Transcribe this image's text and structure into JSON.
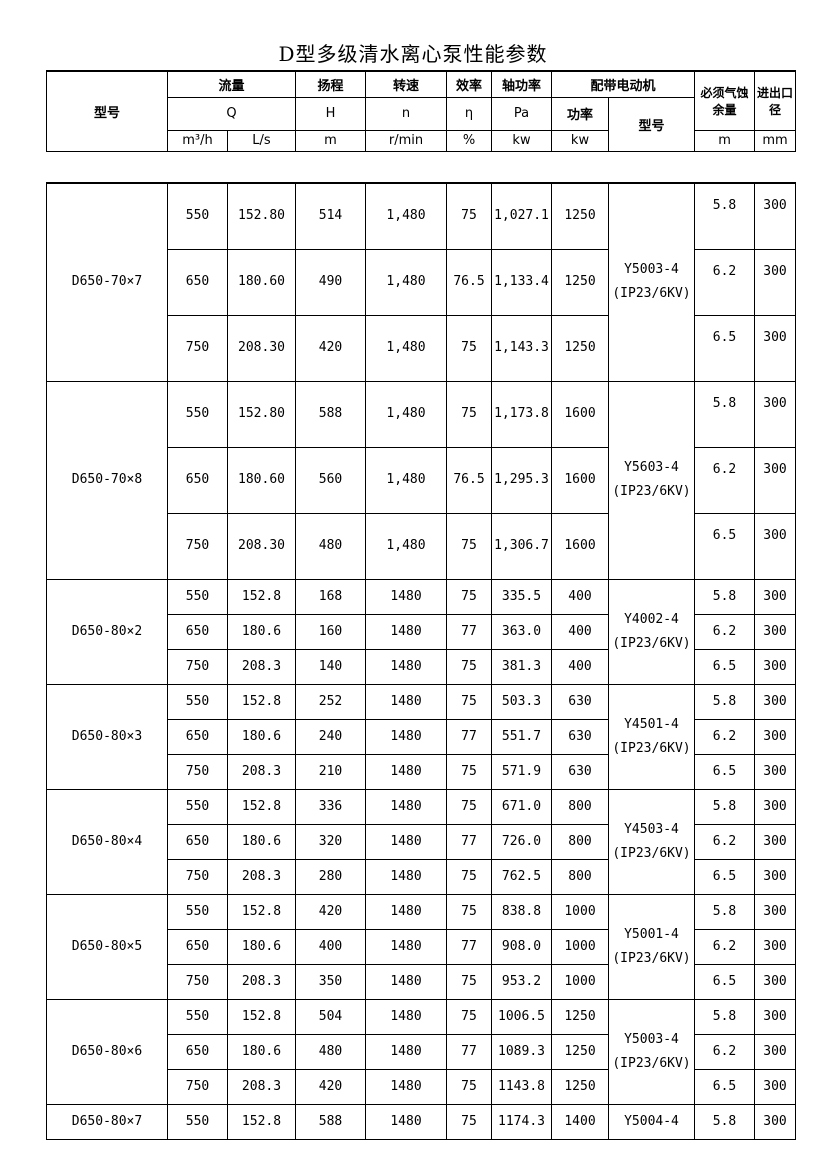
{
  "title": "D型多级清水离心泵性能参数",
  "header": {
    "model": "型号",
    "flow": "流量",
    "head": "扬程",
    "speed": "转速",
    "eff": "效率",
    "shaft_power": "轴功率",
    "motor": "配带电动机",
    "npsh": "必须气蚀余量",
    "port": "进出口径",
    "Q": "Q",
    "H": "H",
    "n": "n",
    "eta": "η",
    "Pa": "Pa",
    "power": "功率",
    "motor_model": "型号",
    "u_m3h": "m³/h",
    "u_ls": "L/s",
    "u_m": "m",
    "u_rpm": "r/min",
    "u_pct": "%",
    "u_kw": "kw",
    "u_kw2": "kw",
    "u_npsh": "m",
    "u_mm": "mm"
  },
  "groups": [
    {
      "model": "D650-70×7",
      "motor": "Y5003-4\n(IP23/6KV)",
      "rows": [
        [
          "550",
          "152.80",
          "514",
          "1,480",
          "75",
          "1,027.1",
          "1250",
          "5.8",
          "300"
        ],
        [
          "650",
          "180.60",
          "490",
          "1,480",
          "76.5",
          "1,133.4",
          "1250",
          "6.2",
          "300"
        ],
        [
          "750",
          "208.30",
          "420",
          "1,480",
          "75",
          "1,143.3",
          "1250",
          "6.5",
          "300"
        ]
      ]
    },
    {
      "model": "D650-70×8",
      "motor": "Y5603-4\n(IP23/6KV)",
      "rows": [
        [
          "550",
          "152.80",
          "588",
          "1,480",
          "75",
          "1,173.8",
          "1600",
          "5.8",
          "300"
        ],
        [
          "650",
          "180.60",
          "560",
          "1,480",
          "76.5",
          "1,295.3",
          "1600",
          "6.2",
          "300"
        ],
        [
          "750",
          "208.30",
          "480",
          "1,480",
          "75",
          "1,306.7",
          "1600",
          "6.5",
          "300"
        ]
      ]
    },
    {
      "model": "D650-80×2",
      "motor": "Y4002-4\n(IP23/6KV)",
      "rows": [
        [
          "550",
          "152.8",
          "168",
          "1480",
          "75",
          "335.5",
          "400",
          "5.8",
          "300"
        ],
        [
          "650",
          "180.6",
          "160",
          "1480",
          "77",
          "363.0",
          "400",
          "6.2",
          "300"
        ],
        [
          "750",
          "208.3",
          "140",
          "1480",
          "75",
          "381.3",
          "400",
          "6.5",
          "300"
        ]
      ]
    },
    {
      "model": "D650-80×3",
      "motor": "Y4501-4\n(IP23/6KV)",
      "rows": [
        [
          "550",
          "152.8",
          "252",
          "1480",
          "75",
          "503.3",
          "630",
          "5.8",
          "300"
        ],
        [
          "650",
          "180.6",
          "240",
          "1480",
          "77",
          "551.7",
          "630",
          "6.2",
          "300"
        ],
        [
          "750",
          "208.3",
          "210",
          "1480",
          "75",
          "571.9",
          "630",
          "6.5",
          "300"
        ]
      ]
    },
    {
      "model": "D650-80×4",
      "motor": "Y4503-4\n(IP23/6KV)",
      "rows": [
        [
          "550",
          "152.8",
          "336",
          "1480",
          "75",
          "671.0",
          "800",
          "5.8",
          "300"
        ],
        [
          "650",
          "180.6",
          "320",
          "1480",
          "77",
          "726.0",
          "800",
          "6.2",
          "300"
        ],
        [
          "750",
          "208.3",
          "280",
          "1480",
          "75",
          "762.5",
          "800",
          "6.5",
          "300"
        ]
      ]
    },
    {
      "model": "D650-80×5",
      "motor": "Y5001-4\n(IP23/6KV)",
      "rows": [
        [
          "550",
          "152.8",
          "420",
          "1480",
          "75",
          "838.8",
          "1000",
          "5.8",
          "300"
        ],
        [
          "650",
          "180.6",
          "400",
          "1480",
          "77",
          "908.0",
          "1000",
          "6.2",
          "300"
        ],
        [
          "750",
          "208.3",
          "350",
          "1480",
          "75",
          "953.2",
          "1000",
          "6.5",
          "300"
        ]
      ]
    },
    {
      "model": "D650-80×6",
      "motor": "Y5003-4\n(IP23/6KV)",
      "rows": [
        [
          "550",
          "152.8",
          "504",
          "1480",
          "75",
          "1006.5",
          "1250",
          "5.8",
          "300"
        ],
        [
          "650",
          "180.6",
          "480",
          "1480",
          "77",
          "1089.3",
          "1250",
          "6.2",
          "300"
        ],
        [
          "750",
          "208.3",
          "420",
          "1480",
          "75",
          "1143.8",
          "1250",
          "6.5",
          "300"
        ]
      ]
    },
    {
      "model": "D650-80×7",
      "motor": "Y5004-4",
      "rows": [
        [
          "550",
          "152.8",
          "588",
          "1480",
          "75",
          "1174.3",
          "1400",
          "5.8",
          "300"
        ]
      ]
    }
  ]
}
